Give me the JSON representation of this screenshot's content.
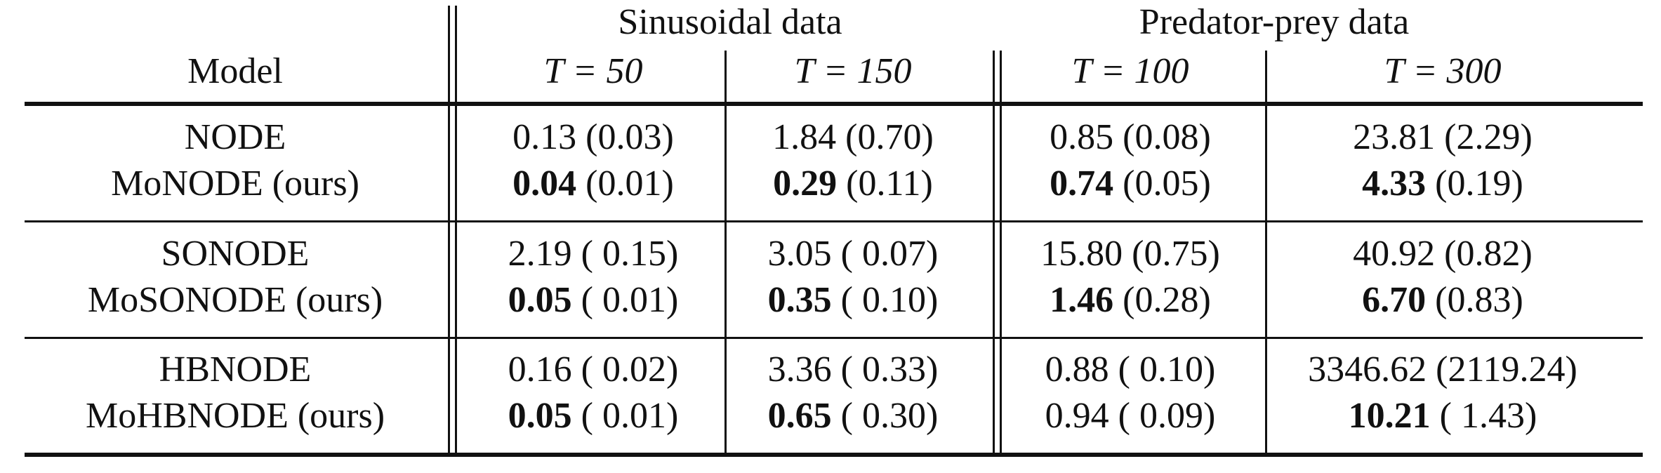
{
  "table": {
    "header": {
      "model": "Model",
      "groups": [
        "Sinusoidal data",
        "Predator-prey data"
      ],
      "subcols": [
        "T = 50",
        "T = 150",
        "T = 100",
        "T = 300"
      ]
    },
    "rows": [
      {
        "model_prefix": "",
        "model": "NODE",
        "cells": [
          {
            "b": "",
            "r": "0.13 (0.03)"
          },
          {
            "b": "",
            "r": "1.84 (0.70)"
          },
          {
            "b": "",
            "r": "0.85 (0.08)"
          },
          {
            "b": "",
            "r": "23.81 (2.29)"
          }
        ]
      },
      {
        "model_prefix": "Mo",
        "model": "NODE (ours)",
        "cells": [
          {
            "b": "0.04",
            "r": " (0.01)"
          },
          {
            "b": "0.29",
            "r": " (0.11)"
          },
          {
            "b": "0.74",
            "r": " (0.05)"
          },
          {
            "b": "4.33",
            "r": " (0.19)"
          }
        ]
      },
      {
        "model_prefix": "",
        "model": "SONODE",
        "cells": [
          {
            "b": "",
            "r": "2.19 ( 0.15)"
          },
          {
            "b": "",
            "r": "3.05 ( 0.07)"
          },
          {
            "b": "",
            "r": "15.80 (0.75)"
          },
          {
            "b": "",
            "r": "40.92 (0.82)"
          }
        ]
      },
      {
        "model_prefix": "Mo",
        "model": "SONODE (ours)",
        "cells": [
          {
            "b": "0.05",
            "r": " ( 0.01)"
          },
          {
            "b": "0.35",
            "r": " ( 0.10)"
          },
          {
            "b": "1.46",
            "r": " (0.28)"
          },
          {
            "b": "6.70",
            "r": " (0.83)"
          }
        ]
      },
      {
        "model_prefix": "",
        "model": "HBNODE",
        "cells": [
          {
            "b": "",
            "r": "0.16 ( 0.02)"
          },
          {
            "b": "",
            "r": "3.36 ( 0.33)"
          },
          {
            "b": "",
            "r": "0.88 ( 0.10)"
          },
          {
            "b": "",
            "r": "3346.62 (2119.24)"
          }
        ]
      },
      {
        "model_prefix": "Mo",
        "model": "HBNODE (ours)",
        "cells": [
          {
            "b": "0.05",
            "r": " ( 0.01)"
          },
          {
            "b": "0.65",
            "r": " ( 0.30)"
          },
          {
            "b": "",
            "r": "0.94 ( 0.09)"
          },
          {
            "b": "10.21",
            "r": " ( 1.43)"
          }
        ]
      }
    ]
  }
}
